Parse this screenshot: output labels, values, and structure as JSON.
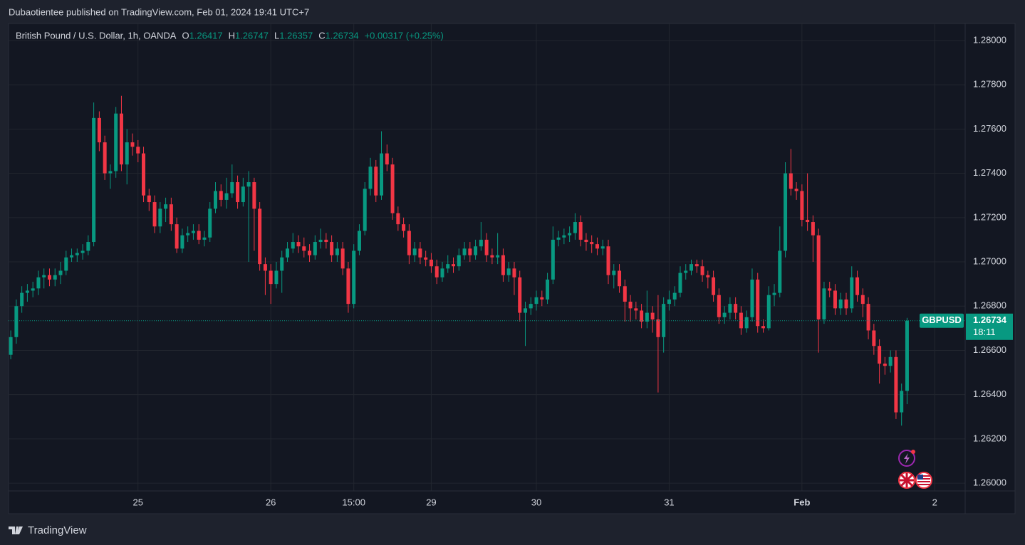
{
  "publisher": "Dubaotientee published on TradingView.com, Feb 01, 2024 19:41 UTC+7",
  "brand": "TradingView",
  "chart_data": {
    "type": "candlestick",
    "title": "British Pound / U.S. Dollar, 1h, OANDA",
    "ohlc_labels": [
      "O",
      "H",
      "L",
      "C"
    ],
    "change": "+0.00317 (+0.25%)",
    "symbol": "GBPUSD",
    "countdown": "18:11",
    "up_color": "#089981",
    "down_color": "#f23645",
    "grid": true,
    "xlim": [
      -0.4,
      172.5
    ],
    "xticks": [
      {
        "value": 23,
        "label": "25"
      },
      {
        "value": 47,
        "label": "26"
      },
      {
        "value": 62,
        "label": "15:00"
      },
      {
        "value": 76,
        "label": "29"
      },
      {
        "value": 95,
        "label": "30"
      },
      {
        "value": 119,
        "label": "31"
      },
      {
        "value": 143,
        "label": "Feb"
      },
      {
        "value": 167,
        "label": "2"
      }
    ],
    "ylim": [
      1.25965,
      1.28077
    ],
    "yticks": [
      {
        "value": 1.26,
        "label": "1.26000"
      },
      {
        "value": 1.262,
        "label": "1.26200"
      },
      {
        "value": 1.264,
        "label": "1.26400"
      },
      {
        "value": 1.266,
        "label": "1.26600"
      },
      {
        "value": 1.268,
        "label": "1.26800"
      },
      {
        "value": 1.27,
        "label": "1.27000"
      },
      {
        "value": 1.272,
        "label": "1.27200"
      },
      {
        "value": 1.274,
        "label": "1.27400"
      },
      {
        "value": 1.276,
        "label": "1.27600"
      },
      {
        "value": 1.278,
        "label": "1.27800"
      },
      {
        "value": 1.28,
        "label": "1.28000"
      }
    ],
    "open": [
      1.2658,
      1.2666,
      1.268,
      1.2686,
      1.2687,
      1.2688,
      1.2693,
      1.2694,
      1.2692,
      1.2694,
      1.2696,
      1.2702,
      1.2703,
      1.2704,
      1.2705,
      1.2709,
      1.2765,
      1.2754,
      1.274,
      1.2741,
      1.2767,
      1.2744,
      1.2754,
      1.2752,
      1.2749,
      1.273,
      1.2727,
      1.2716,
      1.2724,
      1.2726,
      1.2717,
      1.2706,
      1.2712,
      1.2713,
      1.2714,
      1.271,
      1.2711,
      1.2724,
      1.2732,
      1.2728,
      1.2731,
      1.2736,
      1.2727,
      1.2734,
      1.2736,
      1.2724,
      1.2699,
      1.2696,
      1.269,
      1.2696,
      1.2702,
      1.2706,
      1.2709,
      1.2707,
      1.2705,
      1.2703,
      1.2709,
      1.271,
      1.2709,
      1.2703,
      1.2706,
      1.2697,
      1.2681,
      1.2705,
      1.2714,
      1.2733,
      1.2743,
      1.273,
      1.2749,
      1.2744,
      1.2722,
      1.2717,
      1.2714,
      1.2703,
      1.2706,
      1.2702,
      1.2701,
      1.2698,
      1.2693,
      1.2697,
      1.2699,
      1.2698,
      1.2703,
      1.2706,
      1.2703,
      1.2707,
      1.271,
      1.2703,
      1.2702,
      1.2703,
      1.2694,
      1.2697,
      1.2693,
      1.2677,
      1.2679,
      1.2681,
      1.2684,
      1.2683,
      1.2692,
      1.271,
      1.2711,
      1.2712,
      1.2713,
      1.2718,
      1.271,
      1.2709,
      1.2708,
      1.2706,
      1.2707,
      1.2694,
      1.2696,
      1.2689,
      1.2682,
      1.2679,
      1.2678,
      1.2673,
      1.2677,
      1.2674,
      1.2666,
      1.2681,
      1.2683,
      1.2686,
      1.2695,
      1.2696,
      1.2699,
      1.2698,
      1.2694,
      1.2693,
      1.2685,
      1.2675,
      1.2677,
      1.2681,
      1.2677,
      1.267,
      1.2675,
      1.2692,
      1.2671,
      1.267,
      1.2685,
      1.2686,
      1.2705,
      1.274,
      1.2733,
      1.2732,
      1.2719,
      1.2718,
      1.2712,
      1.2674,
      1.2688,
      1.2687,
      1.2679,
      1.2683,
      1.2679,
      1.2693,
      1.2685,
      1.2681,
      1.2669,
      1.2662,
      1.2654,
      1.2653,
      1.2657,
      1.2632,
      1.26417
    ],
    "high": [
      1.2669,
      1.2683,
      1.2689,
      1.269,
      1.2691,
      1.2696,
      1.2697,
      1.2697,
      1.2697,
      1.27,
      1.2705,
      1.2706,
      1.2706,
      1.2708,
      1.2712,
      1.2772,
      1.2768,
      1.2757,
      1.2744,
      1.277,
      1.2775,
      1.276,
      1.2758,
      1.2755,
      1.2752,
      1.2733,
      1.273,
      1.2727,
      1.2729,
      1.2729,
      1.272,
      1.2715,
      1.2716,
      1.2717,
      1.2717,
      1.2714,
      1.2727,
      1.2736,
      1.2735,
      1.2738,
      1.2744,
      1.2739,
      1.2738,
      1.2741,
      1.2738,
      1.2727,
      1.2702,
      1.2699,
      1.27,
      1.2705,
      1.2709,
      1.2713,
      1.2712,
      1.2711,
      1.2708,
      1.2712,
      1.2715,
      1.2713,
      1.2712,
      1.2709,
      1.2709,
      1.27,
      1.2708,
      1.2717,
      1.2736,
      1.2747,
      1.2746,
      1.2759,
      1.2753,
      1.2747,
      1.2725,
      1.272,
      1.2717,
      1.2709,
      1.2709,
      1.2705,
      1.2704,
      1.2701,
      1.27,
      1.2703,
      1.2702,
      1.2706,
      1.2709,
      1.2709,
      1.271,
      1.2718,
      1.2713,
      1.2706,
      1.2713,
      1.2706,
      1.27,
      1.27,
      1.2696,
      1.2682,
      1.2684,
      1.2687,
      1.2687,
      1.2695,
      1.2716,
      1.2714,
      1.2715,
      1.2716,
      1.2722,
      1.2721,
      1.2713,
      1.2712,
      1.2711,
      1.271,
      1.271,
      1.2699,
      1.2699,
      1.2692,
      1.2685,
      1.2682,
      1.2681,
      1.2687,
      1.268,
      1.2685,
      1.2684,
      1.2687,
      1.2689,
      1.2698,
      1.2699,
      1.2701,
      1.2701,
      1.2701,
      1.2696,
      1.2696,
      1.2688,
      1.268,
      1.2684,
      1.2684,
      1.268,
      1.2678,
      1.2697,
      1.2695,
      1.2674,
      1.2689,
      1.269,
      1.2716,
      1.2745,
      1.2751,
      1.2736,
      1.2735,
      1.274,
      1.2721,
      1.2715,
      1.2691,
      1.2691,
      1.269,
      1.2686,
      1.2686,
      1.2698,
      1.2696,
      1.2688,
      1.2684,
      1.2672,
      1.2665,
      1.2657,
      1.266,
      1.266,
      1.2645,
      1.26747
    ],
    "low": [
      1.2656,
      1.2663,
      1.2677,
      1.2682,
      1.2684,
      1.2685,
      1.2688,
      1.2689,
      1.2689,
      1.269,
      1.2694,
      1.27,
      1.27,
      1.2701,
      1.2703,
      1.2707,
      1.275,
      1.2737,
      1.2733,
      1.2738,
      1.2741,
      1.2735,
      1.2748,
      1.2745,
      1.2727,
      1.2723,
      1.2713,
      1.2713,
      1.2718,
      1.2714,
      1.2704,
      1.2704,
      1.2709,
      1.271,
      1.2708,
      1.2707,
      1.2709,
      1.2722,
      1.2725,
      1.2724,
      1.2729,
      1.2724,
      1.2725,
      1.27,
      1.2705,
      1.2696,
      1.2685,
      1.2681,
      1.2688,
      1.2686,
      1.27,
      1.2704,
      1.2704,
      1.2702,
      1.27,
      1.2701,
      1.2706,
      1.2706,
      1.27,
      1.27,
      1.2694,
      1.2677,
      1.2679,
      1.2703,
      1.2712,
      1.273,
      1.2727,
      1.2728,
      1.2741,
      1.2719,
      1.2714,
      1.2711,
      1.2699,
      1.27,
      1.2699,
      1.2698,
      1.2695,
      1.269,
      1.2691,
      1.2695,
      1.2695,
      1.2696,
      1.2701,
      1.27,
      1.2701,
      1.2705,
      1.27,
      1.2699,
      1.2699,
      1.2691,
      1.2691,
      1.2685,
      1.2673,
      1.2662,
      1.2676,
      1.2678,
      1.268,
      1.2681,
      1.269,
      1.2707,
      1.2708,
      1.2709,
      1.271,
      1.2707,
      1.2705,
      1.2704,
      1.2703,
      1.2703,
      1.269,
      1.2688,
      1.2686,
      1.2673,
      1.2673,
      1.2674,
      1.267,
      1.267,
      1.2668,
      1.2641,
      1.2659,
      1.2678,
      1.268,
      1.2684,
      1.2692,
      1.2694,
      1.2695,
      1.2691,
      1.2688,
      1.2682,
      1.2672,
      1.2672,
      1.2674,
      1.2674,
      1.2667,
      1.2668,
      1.2673,
      1.2668,
      1.2668,
      1.2669,
      1.268,
      1.2684,
      1.2702,
      1.273,
      1.2728,
      1.2716,
      1.2714,
      1.27,
      1.2659,
      1.2672,
      1.2684,
      1.2676,
      1.2676,
      1.2676,
      1.2677,
      1.2682,
      1.2675,
      1.2665,
      1.2658,
      1.2645,
      1.2649,
      1.265,
      1.2629,
      1.2626,
      1.26357
    ],
    "close": [
      1.2666,
      1.268,
      1.2686,
      1.2687,
      1.2688,
      1.2693,
      1.2694,
      1.2692,
      1.2694,
      1.2696,
      1.2702,
      1.2703,
      1.2704,
      1.2705,
      1.2709,
      1.2765,
      1.2754,
      1.274,
      1.2741,
      1.2767,
      1.2744,
      1.2754,
      1.2752,
      1.2749,
      1.273,
      1.2727,
      1.2716,
      1.2724,
      1.2726,
      1.2717,
      1.2706,
      1.2712,
      1.2713,
      1.2714,
      1.271,
      1.2711,
      1.2724,
      1.2732,
      1.2728,
      1.2731,
      1.2736,
      1.2727,
      1.2734,
      1.2736,
      1.2724,
      1.2699,
      1.2696,
      1.269,
      1.2696,
      1.2702,
      1.2706,
      1.2709,
      1.2707,
      1.2705,
      1.2703,
      1.2709,
      1.271,
      1.2709,
      1.2703,
      1.2706,
      1.2697,
      1.2681,
      1.2705,
      1.2714,
      1.2733,
      1.2743,
      1.273,
      1.2749,
      1.2744,
      1.2722,
      1.2717,
      1.2714,
      1.2703,
      1.2706,
      1.2702,
      1.2701,
      1.2698,
      1.2693,
      1.2697,
      1.2699,
      1.2698,
      1.2703,
      1.2706,
      1.2703,
      1.2707,
      1.271,
      1.2703,
      1.2702,
      1.2703,
      1.2694,
      1.2697,
      1.2693,
      1.2677,
      1.2679,
      1.2681,
      1.2684,
      1.2683,
      1.2692,
      1.271,
      1.2711,
      1.2712,
      1.2713,
      1.2718,
      1.271,
      1.2709,
      1.2708,
      1.2706,
      1.2707,
      1.2694,
      1.2696,
      1.2689,
      1.2682,
      1.2679,
      1.2678,
      1.2673,
      1.2677,
      1.2674,
      1.2666,
      1.2681,
      1.2683,
      1.2686,
      1.2695,
      1.2696,
      1.2699,
      1.2698,
      1.2694,
      1.2693,
      1.2685,
      1.2675,
      1.2677,
      1.2681,
      1.2677,
      1.267,
      1.2675,
      1.2692,
      1.2671,
      1.267,
      1.2685,
      1.2686,
      1.2705,
      1.274,
      1.2733,
      1.2732,
      1.2719,
      1.2718,
      1.2712,
      1.2674,
      1.2688,
      1.2687,
      1.2679,
      1.2683,
      1.2679,
      1.2693,
      1.2685,
      1.2681,
      1.2669,
      1.2662,
      1.2654,
      1.2653,
      1.2657,
      1.2632,
      1.26417,
      1.26734
    ]
  }
}
